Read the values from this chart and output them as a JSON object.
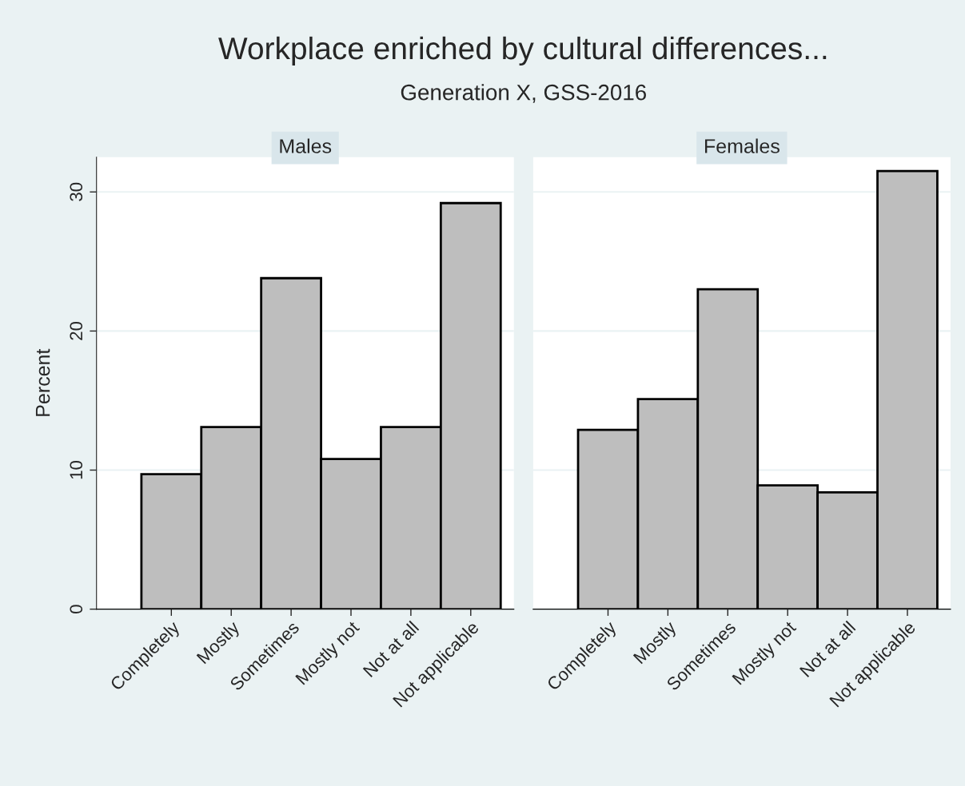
{
  "chart_data": [
    {
      "type": "bar",
      "title": "Workplace enriched by cultural differences...",
      "subtitle": "Generation X, GSS-2016",
      "annotations": [
        "Males"
      ],
      "ylabel": "Percent",
      "categories": [
        "Completely",
        "Mostly",
        "Sometimes",
        "Mostly not",
        "Not at all",
        "Not applicable"
      ],
      "values": [
        9.7,
        13.1,
        23.8,
        10.8,
        13.1,
        29.2
      ],
      "color": "#bebebe",
      "ylim": [
        0,
        32.5
      ],
      "yticks": [
        0,
        10,
        20,
        30
      ],
      "grid": "y"
    },
    {
      "type": "bar",
      "annotations": [
        "Females"
      ],
      "categories": [
        "Completely",
        "Mostly",
        "Sometimes",
        "Mostly not",
        "Not at all",
        "Not applicable"
      ],
      "values": [
        12.9,
        15.1,
        23.0,
        8.9,
        8.4,
        31.5
      ],
      "color": "#bebebe",
      "ylim": [
        0,
        32.5
      ],
      "yticks": [
        0,
        10,
        20,
        30
      ],
      "grid": "y",
      "tick_labels": "x"
    }
  ]
}
